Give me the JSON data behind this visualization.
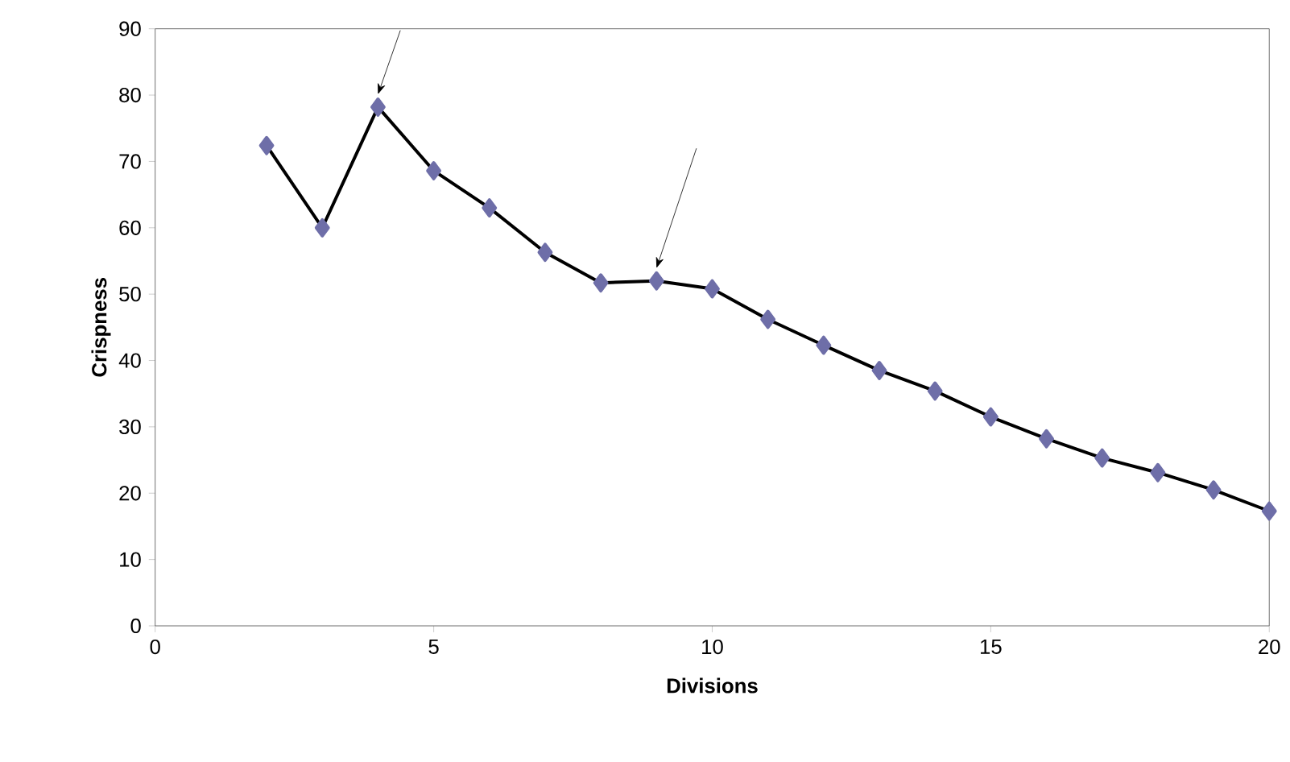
{
  "chart_data": {
    "type": "line",
    "xlabel": "Divisions",
    "ylabel": "Crispness",
    "x": [
      2,
      3,
      4,
      5,
      6,
      7,
      8,
      9,
      10,
      11,
      12,
      13,
      14,
      15,
      16,
      17,
      18,
      19,
      20
    ],
    "series": [
      {
        "color": "#000000",
        "values": [
          72.4,
          60,
          78.2,
          68.6,
          63,
          56.3,
          51.7,
          52,
          50.8,
          46.2,
          42.3,
          38.5,
          35.4,
          31.5,
          28.2,
          25.3,
          23.1,
          20.5,
          17.3
        ]
      }
    ],
    "marker": "diamond",
    "line_style": "solid",
    "xlim": [
      0,
      20
    ],
    "xticks": [
      0,
      5,
      10,
      15,
      20
    ],
    "ylim": [
      0,
      90
    ],
    "yticks": [
      0,
      10,
      20,
      30,
      40,
      50,
      60,
      70,
      80,
      90
    ]
  }
}
